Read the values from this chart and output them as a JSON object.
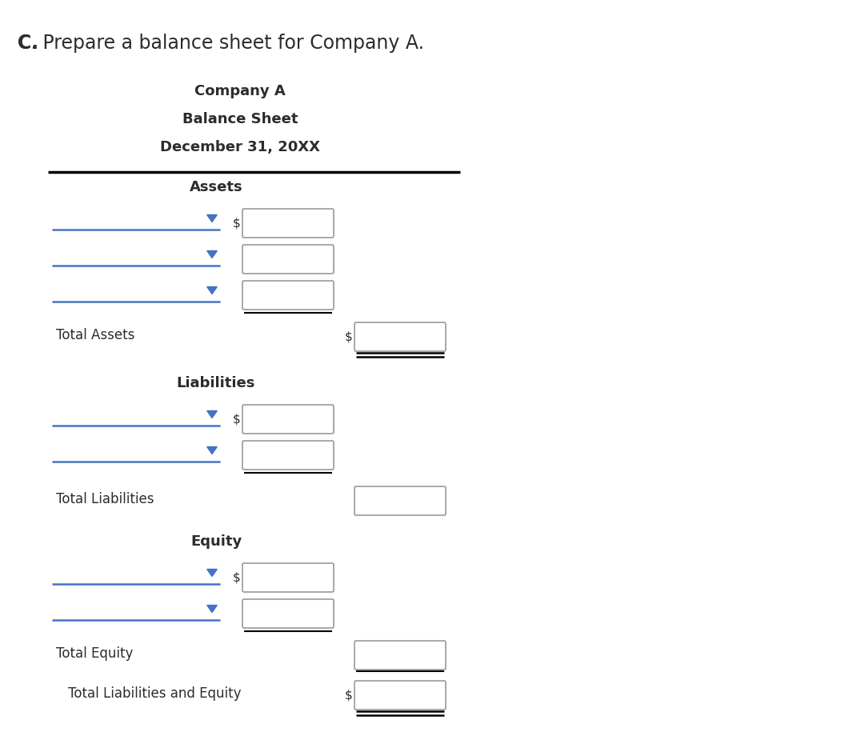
{
  "title_question_c": "C. ",
  "title_question_rest": "Prepare a balance sheet for Company A.",
  "company_name": "Company A",
  "sheet_title": "Balance Sheet",
  "date": "December 31, 20XX",
  "section_assets": "Assets",
  "section_liabilities": "Liabilities",
  "section_equity": "Equity",
  "label_total_assets": "Total Assets",
  "label_total_liabilities": "Total Liabilities",
  "label_total_equity": "Total Equity",
  "label_total_liabilities_equity": "Total Liabilities and Equity",
  "bg_color": "#ffffff",
  "text_color": "#2c2c2c",
  "blue_line_color": "#4472c4",
  "black_line_color": "#000000",
  "box_edge_color": "#999999",
  "arrow_color": "#4472c4",
  "input_box_facecolor": "#ffffff"
}
